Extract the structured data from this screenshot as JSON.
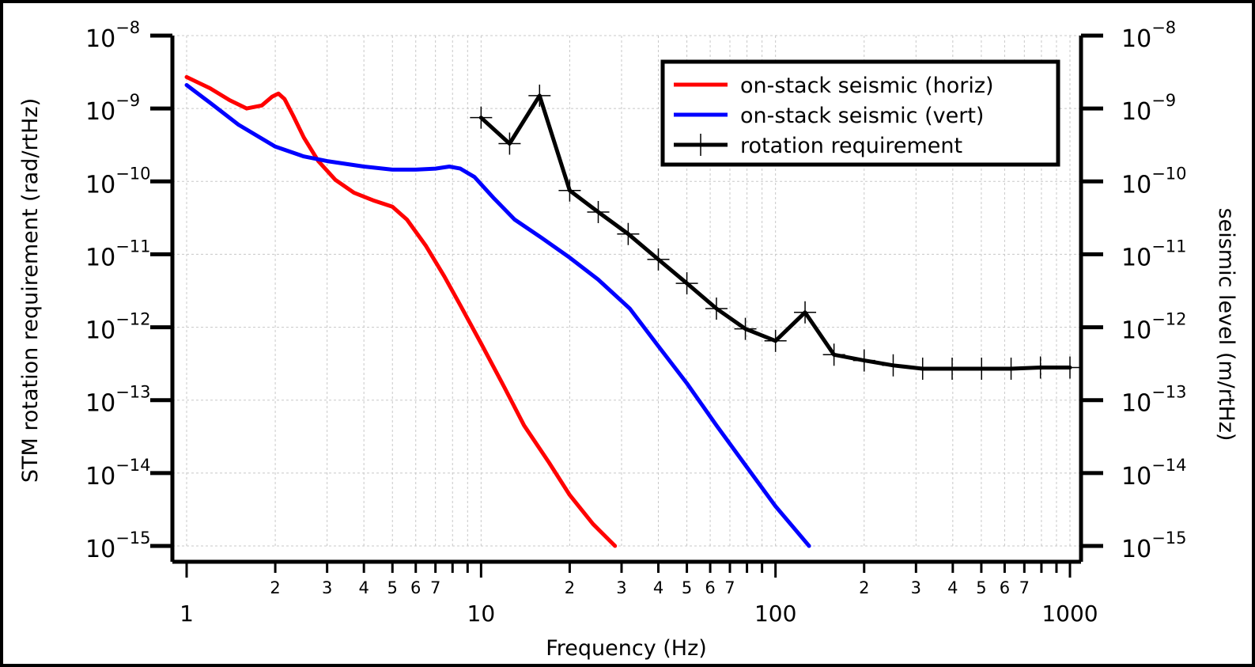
{
  "chart_data": {
    "type": "line",
    "xscale": "log",
    "yscale": "log",
    "xlim": [
      1,
      1000
    ],
    "ylim": [
      1e-15,
      1e-08
    ],
    "xlabel": "Frequency (Hz)",
    "ylabel_left": "STM rotation requirement (rad/rtHz)",
    "ylabel_right": "seismic level (m/rtHz)",
    "grid": true,
    "legend_position": "top-right",
    "x_major_ticks": [
      {
        "value": 1,
        "label": "1"
      },
      {
        "value": 10,
        "label": "10"
      },
      {
        "value": 100,
        "label": "100"
      },
      {
        "value": 1000,
        "label": "1000"
      }
    ],
    "x_minor_labels": [
      "2",
      "3",
      "4",
      "5",
      "6",
      "7"
    ],
    "y_ticks": [
      {
        "value": 1e-08,
        "exponent": "−8"
      },
      {
        "value": 1e-09,
        "exponent": "−9"
      },
      {
        "value": 1e-10,
        "exponent": "−10"
      },
      {
        "value": 1e-11,
        "exponent": "−11"
      },
      {
        "value": 1e-12,
        "exponent": "−12"
      },
      {
        "value": 1e-13,
        "exponent": "−13"
      },
      {
        "value": 1e-14,
        "exponent": "−14"
      },
      {
        "value": 1e-15,
        "exponent": "−15"
      }
    ],
    "y_tick_base": "10",
    "series": [
      {
        "name": "on-stack seismic (horiz)",
        "color": "#ff0000",
        "marker": "none",
        "x": [
          1,
          1.2,
          1.4,
          1.6,
          1.8,
          1.95,
          2.05,
          2.15,
          2.3,
          2.5,
          2.8,
          3.2,
          3.7,
          4.3,
          5,
          5.6,
          6.5,
          7.5,
          8.5,
          10,
          12,
          14,
          17,
          20,
          24,
          28.5
        ],
        "y": [
          2.7e-09,
          1.9e-09,
          1.3e-09,
          1e-09,
          1.1e-09,
          1.45e-09,
          1.6e-09,
          1.35e-09,
          8e-10,
          4e-10,
          1.9e-10,
          1.05e-10,
          7e-11,
          5.5e-11,
          4.5e-11,
          3e-11,
          1.3e-11,
          5e-12,
          2e-12,
          6e-13,
          1.5e-13,
          4.5e-14,
          1.4e-14,
          5e-15,
          2e-15,
          1e-15
        ]
      },
      {
        "name": "on-stack seismic (vert)",
        "color": "#0000ff",
        "marker": "none",
        "x": [
          1,
          1.2,
          1.5,
          2,
          2.5,
          3,
          4,
          5,
          6,
          7,
          7.8,
          8.5,
          9.5,
          11,
          13,
          16,
          20,
          25,
          32,
          40,
          50,
          63,
          80,
          100,
          130
        ],
        "y": [
          2.1e-09,
          1.2e-09,
          6e-10,
          3e-10,
          2.2e-10,
          1.9e-10,
          1.6e-10,
          1.45e-10,
          1.45e-10,
          1.5e-10,
          1.6e-10,
          1.5e-10,
          1.15e-10,
          6e-11,
          3e-11,
          1.7e-11,
          9e-12,
          4.5e-12,
          1.8e-12,
          5.5e-13,
          1.7e-13,
          4.5e-14,
          1.2e-14,
          3.5e-15,
          1e-15
        ]
      },
      {
        "name": "rotation requirement",
        "color": "#000000",
        "marker": "plus",
        "x": [
          10,
          12.5,
          15.8,
          20,
          25,
          31.6,
          40,
          50,
          63,
          79,
          100,
          126,
          158,
          200,
          251,
          316,
          398,
          501,
          631,
          794,
          1000
        ],
        "y": [
          7.5e-10,
          3.3e-10,
          1.5e-09,
          7.5e-11,
          3.8e-11,
          1.9e-11,
          8.5e-12,
          4e-12,
          1.8e-12,
          9.5e-13,
          6.5e-13,
          1.6e-12,
          4.2e-13,
          3.5e-13,
          3e-13,
          2.7e-13,
          2.7e-13,
          2.7e-13,
          2.7e-13,
          2.8e-13,
          2.8e-13
        ]
      }
    ]
  }
}
